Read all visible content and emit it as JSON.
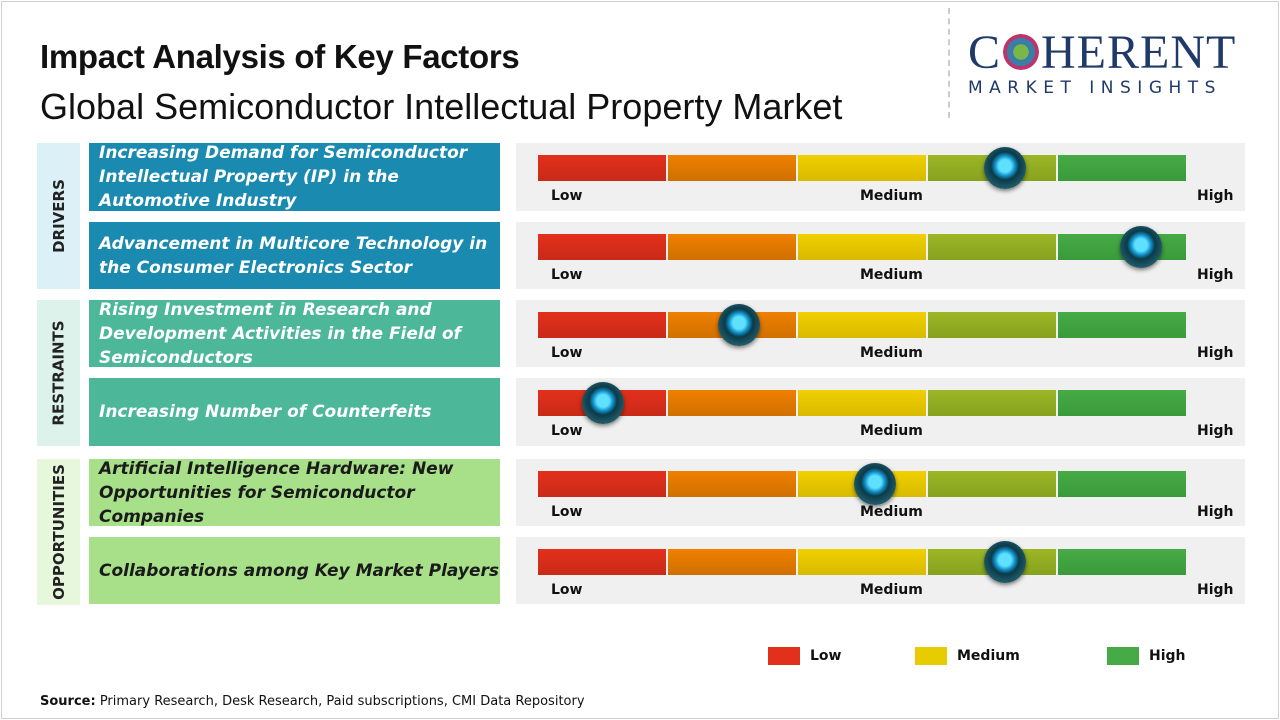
{
  "title": "Impact Analysis of Key Factors",
  "subtitle": "Global Semiconductor Intellectual Property Market",
  "logo": {
    "main": "COHERENT",
    "sub": "MARKET INSIGHTS"
  },
  "scale_labels": {
    "low": "Low",
    "medium": "Medium",
    "high": "High"
  },
  "categories": [
    {
      "label": "DRIVERS",
      "color": "#1a8ab0",
      "bg": "#dcf0f8"
    },
    {
      "label": "RESTRAINTS",
      "color": "#4db79a",
      "bg": "#dcf2ea"
    },
    {
      "label": "OPPORTUNITIES",
      "color": "#a8e08a",
      "bg": "#e6f7dc"
    }
  ],
  "factors": [
    {
      "category": "DRIVERS",
      "text": "Increasing Demand for Semiconductor Intellectual Property (IP) in the Automotive Industry",
      "impact": 0.72
    },
    {
      "category": "DRIVERS",
      "text": "Advancement in Multicore Technology in the Consumer Electronics Sector",
      "impact": 0.93
    },
    {
      "category": "RESTRAINTS",
      "text": "Rising Investment in Research and Development Activities in the Field of Semiconductors",
      "impact": 0.31
    },
    {
      "category": "RESTRAINTS",
      "text": "Increasing Number of Counterfeits",
      "impact": 0.1
    },
    {
      "category": "OPPORTUNITIES",
      "text": "Artificial Intelligence Hardware: New Opportunities for Semiconductor Companies",
      "impact": 0.52
    },
    {
      "category": "OPPORTUNITIES",
      "text": "Collaborations among Key Market Players",
      "impact": 0.72
    }
  ],
  "legend": [
    {
      "label": "Low",
      "color": "#e2301c"
    },
    {
      "label": "Medium",
      "color": "#e6cc00"
    },
    {
      "label": "High",
      "color": "#46ab46"
    }
  ],
  "source": {
    "label": "Source:",
    "text": " Primary Research, Desk Research, Paid subscriptions, CMI Data Repository"
  }
}
